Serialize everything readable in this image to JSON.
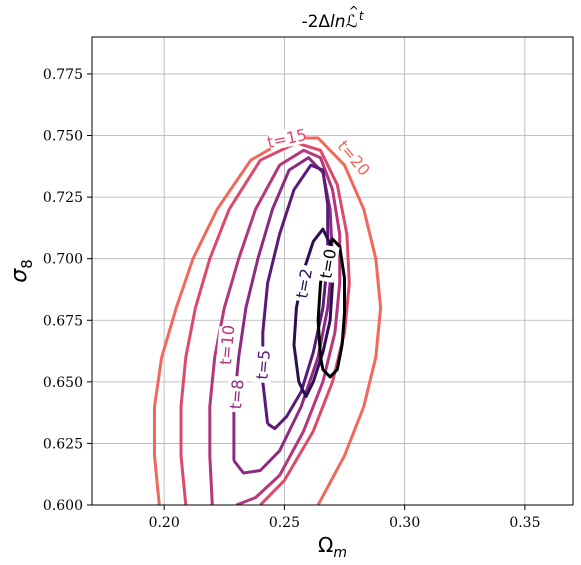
{
  "chart_data": {
    "type": "line",
    "title": "-2ΔlnL̂_t",
    "title_parts": {
      "prefix": "-2Δ",
      "ln": "ln",
      "L": "ℒ",
      "hat": "^",
      "sub": "t"
    },
    "xlabel": "Ω_m",
    "xlabel_parts": {
      "main": "Ω",
      "sub": "m"
    },
    "ylabel": "σ_8",
    "ylabel_parts": {
      "main": "σ",
      "sub": "8"
    },
    "xlim": [
      0.17,
      0.37
    ],
    "ylim": [
      0.6,
      0.79
    ],
    "xticks": [
      "0.20",
      "0.25",
      "0.30",
      "0.35"
    ],
    "yticks": [
      "0.600",
      "0.625",
      "0.650",
      "0.675",
      "0.700",
      "0.725",
      "0.750",
      "0.775"
    ],
    "grid": true,
    "series": [
      {
        "name": "t=20",
        "label": "t=20",
        "color": "#f1695a",
        "points": [
          [
            0.198,
            0.6
          ],
          [
            0.196,
            0.62
          ],
          [
            0.196,
            0.64
          ],
          [
            0.199,
            0.66
          ],
          [
            0.205,
            0.68
          ],
          [
            0.212,
            0.7
          ],
          [
            0.222,
            0.72
          ],
          [
            0.236,
            0.74
          ],
          [
            0.252,
            0.749
          ],
          [
            0.264,
            0.749
          ],
          [
            0.275,
            0.738
          ],
          [
            0.283,
            0.72
          ],
          [
            0.288,
            0.7
          ],
          [
            0.29,
            0.68
          ],
          [
            0.288,
            0.66
          ],
          [
            0.283,
            0.64
          ],
          [
            0.275,
            0.62
          ],
          [
            0.264,
            0.6
          ]
        ]
      },
      {
        "name": "t=15",
        "label": "t=15",
        "color": "#dd4a69",
        "points": [
          [
            0.209,
            0.6
          ],
          [
            0.207,
            0.62
          ],
          [
            0.207,
            0.64
          ],
          [
            0.209,
            0.66
          ],
          [
            0.213,
            0.68
          ],
          [
            0.219,
            0.7
          ],
          [
            0.227,
            0.72
          ],
          [
            0.24,
            0.74
          ],
          [
            0.255,
            0.747
          ],
          [
            0.265,
            0.744
          ],
          [
            0.272,
            0.73
          ],
          [
            0.276,
            0.71
          ],
          [
            0.277,
            0.69
          ],
          [
            0.275,
            0.67
          ],
          [
            0.27,
            0.65
          ],
          [
            0.262,
            0.63
          ],
          [
            0.25,
            0.61
          ],
          [
            0.24,
            0.6
          ]
        ]
      },
      {
        "name": "t=10",
        "label": "t=10",
        "color": "#b5367a",
        "points": [
          [
            0.22,
            0.6
          ],
          [
            0.219,
            0.62
          ],
          [
            0.219,
            0.64
          ],
          [
            0.221,
            0.66
          ],
          [
            0.225,
            0.68
          ],
          [
            0.231,
            0.7
          ],
          [
            0.238,
            0.72
          ],
          [
            0.248,
            0.738
          ],
          [
            0.258,
            0.744
          ],
          [
            0.265,
            0.741
          ],
          [
            0.27,
            0.728
          ],
          [
            0.273,
            0.71
          ],
          [
            0.273,
            0.69
          ],
          [
            0.271,
            0.67
          ],
          [
            0.266,
            0.65
          ],
          [
            0.258,
            0.63
          ],
          [
            0.248,
            0.612
          ],
          [
            0.238,
            0.603
          ],
          [
            0.23,
            0.6
          ]
        ]
      },
      {
        "name": "t=8",
        "label": "t=8",
        "color": "#8f2a81",
        "points": [
          [
            0.229,
            0.618
          ],
          [
            0.229,
            0.64
          ],
          [
            0.231,
            0.66
          ],
          [
            0.234,
            0.68
          ],
          [
            0.239,
            0.7
          ],
          [
            0.245,
            0.72
          ],
          [
            0.252,
            0.736
          ],
          [
            0.26,
            0.741
          ],
          [
            0.266,
            0.735
          ],
          [
            0.269,
            0.72
          ],
          [
            0.27,
            0.7
          ],
          [
            0.268,
            0.68
          ],
          [
            0.264,
            0.66
          ],
          [
            0.257,
            0.64
          ],
          [
            0.248,
            0.622
          ],
          [
            0.24,
            0.614
          ],
          [
            0.233,
            0.613
          ],
          [
            0.229,
            0.618
          ]
        ]
      },
      {
        "name": "t=5",
        "label": "t=5",
        "color": "#5a1b78",
        "points": [
          [
            0.243,
            0.633
          ],
          [
            0.241,
            0.65
          ],
          [
            0.241,
            0.67
          ],
          [
            0.243,
            0.69
          ],
          [
            0.248,
            0.71
          ],
          [
            0.254,
            0.728
          ],
          [
            0.261,
            0.738
          ],
          [
            0.266,
            0.736
          ],
          [
            0.268,
            0.722
          ],
          [
            0.268,
            0.7
          ],
          [
            0.266,
            0.68
          ],
          [
            0.262,
            0.662
          ],
          [
            0.257,
            0.646
          ],
          [
            0.251,
            0.636
          ],
          [
            0.246,
            0.631
          ],
          [
            0.243,
            0.633
          ]
        ]
      },
      {
        "name": "t=2",
        "label": "t=2",
        "color": "#2b0f54",
        "points": [
          [
            0.256,
            0.65
          ],
          [
            0.254,
            0.665
          ],
          [
            0.255,
            0.68
          ],
          [
            0.258,
            0.695
          ],
          [
            0.262,
            0.707
          ],
          [
            0.266,
            0.712
          ],
          [
            0.269,
            0.706
          ],
          [
            0.27,
            0.69
          ],
          [
            0.269,
            0.675
          ],
          [
            0.266,
            0.662
          ],
          [
            0.262,
            0.65
          ],
          [
            0.259,
            0.644
          ],
          [
            0.256,
            0.65
          ]
        ]
      },
      {
        "name": "t=0",
        "label": "t=0",
        "color": "#000000",
        "points": [
          [
            0.265,
            0.66
          ],
          [
            0.264,
            0.675
          ],
          [
            0.265,
            0.69
          ],
          [
            0.267,
            0.7
          ],
          [
            0.27,
            0.708
          ],
          [
            0.273,
            0.705
          ],
          [
            0.275,
            0.692
          ],
          [
            0.275,
            0.678
          ],
          [
            0.274,
            0.665
          ],
          [
            0.272,
            0.655
          ],
          [
            0.269,
            0.652
          ],
          [
            0.266,
            0.655
          ],
          [
            0.265,
            0.66
          ]
        ]
      }
    ],
    "labels": [
      {
        "text": "t=20",
        "x": 0.279,
        "y": 0.741,
        "angle": 50,
        "color": "#f1695a"
      },
      {
        "text": "t=15",
        "x": 0.251,
        "y": 0.749,
        "angle": -12,
        "color": "#dd4a69"
      },
      {
        "text": "t=10",
        "x": 0.226,
        "y": 0.665,
        "angle": -85,
        "color": "#b5367a"
      },
      {
        "text": "t=8",
        "x": 0.23,
        "y": 0.645,
        "angle": -85,
        "color": "#8f2a81"
      },
      {
        "text": "t=5",
        "x": 0.241,
        "y": 0.657,
        "angle": -85,
        "color": "#5a1b78"
      },
      {
        "text": "t=2",
        "x": 0.258,
        "y": 0.69,
        "angle": -80,
        "color": "#2b0f54"
      },
      {
        "text": "t=0",
        "x": 0.268,
        "y": 0.698,
        "angle": -80,
        "color": "#000000"
      }
    ]
  }
}
